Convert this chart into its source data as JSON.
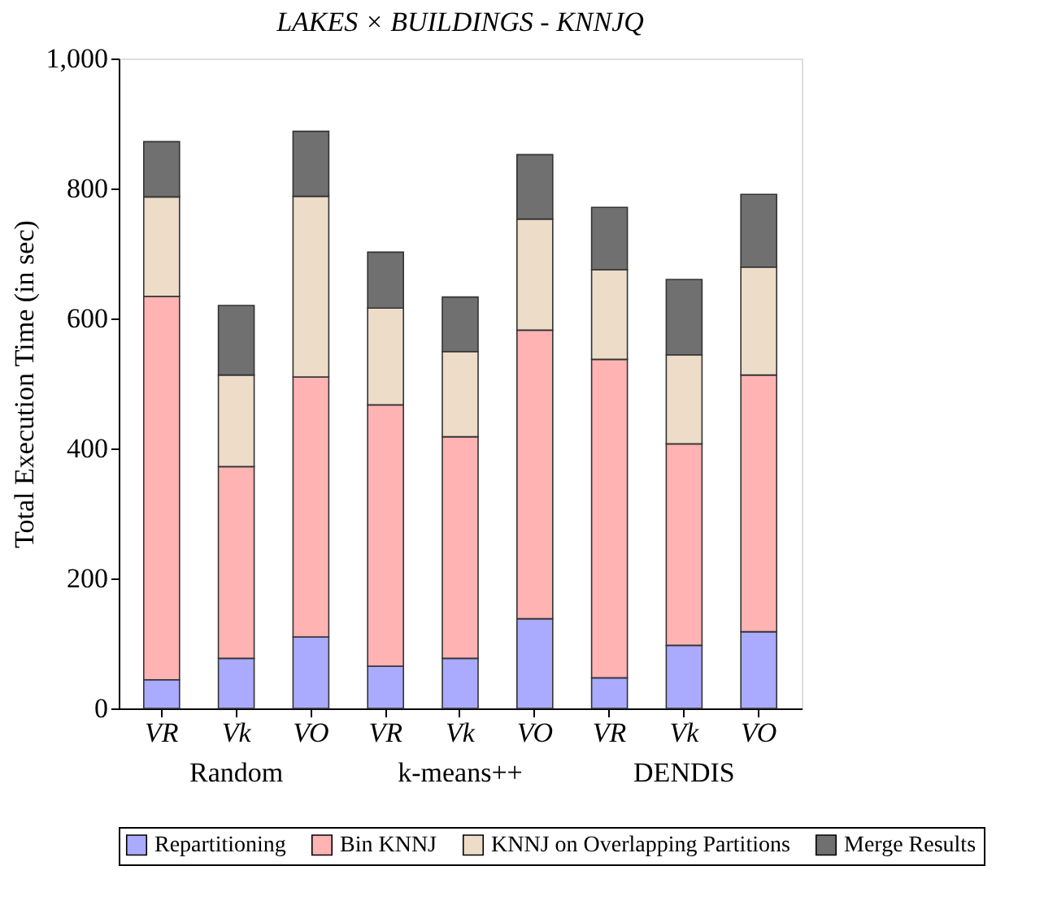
{
  "chart_data": {
    "type": "bar",
    "stacked": true,
    "title": "LAKES × BUILDINGS - KNNJQ",
    "ylabel": "Total Execution Time (in sec)",
    "categories": [
      "VR",
      "Vk",
      "VO",
      "VR",
      "Vk",
      "VO",
      "VR",
      "Vk",
      "VO"
    ],
    "annotations": [
      "Random",
      "k-means++",
      "DENDIS"
    ],
    "series": [
      {
        "name": "Repartitioning",
        "color": "#aaaaff",
        "values": [
          44,
          77,
          110,
          65,
          77,
          138,
          47,
          97,
          118
        ]
      },
      {
        "name": "Bin KNNJ",
        "color": "#ffb3b3",
        "values": [
          590,
          295,
          400,
          402,
          341,
          444,
          490,
          310,
          395
        ]
      },
      {
        "name": "KNNJ on Overlapping Partitions",
        "color": "#ecdcc8",
        "values": [
          153,
          141,
          278,
          149,
          131,
          171,
          138,
          137,
          166
        ]
      },
      {
        "name": "Merge Results",
        "color": "#707070",
        "values": [
          85,
          107,
          100,
          86,
          84,
          99,
          96,
          116,
          112
        ]
      }
    ],
    "ylim": [
      0,
      1000
    ],
    "yticks": [
      0,
      200,
      400,
      600,
      800,
      {
        "value": 1000,
        "label": "1,000"
      }
    ],
    "grid": false,
    "legend": "bottom"
  }
}
